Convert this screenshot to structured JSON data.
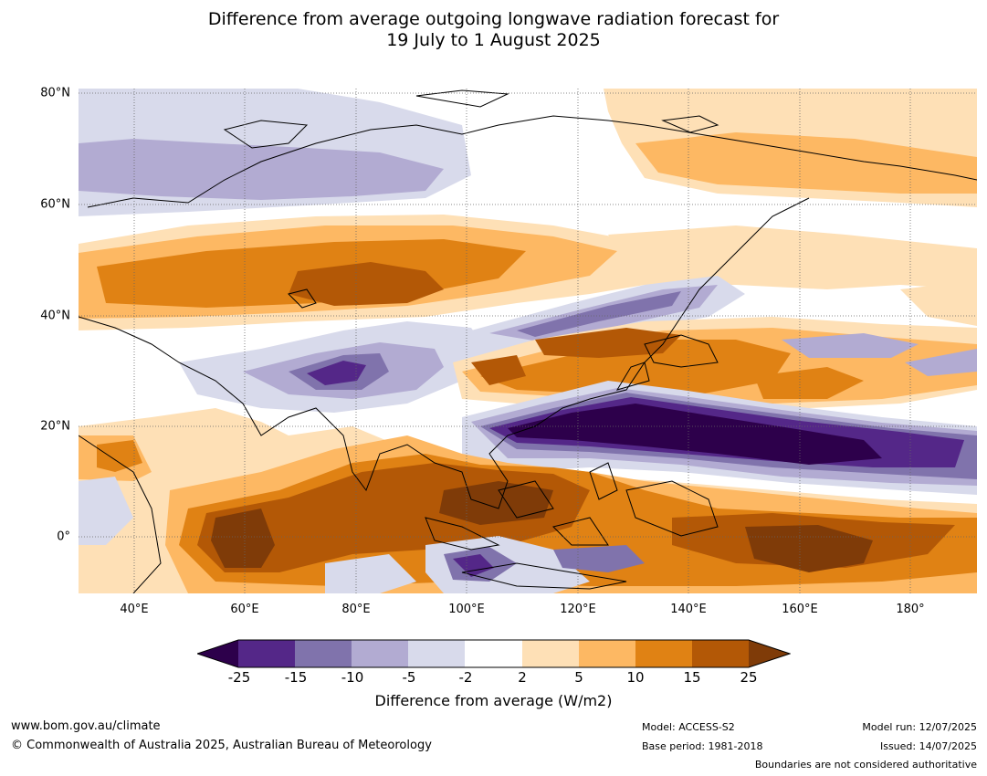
{
  "title": {
    "line1": "Difference from average outgoing longwave radiation forecast for",
    "line2": "19 July to 1 August 2025"
  },
  "map": {
    "lat_labels": [
      "80°N",
      "60°N",
      "40°N",
      "20°N",
      "0°"
    ],
    "lon_labels": [
      "40°E",
      "60°E",
      "80°E",
      "100°E",
      "120°E",
      "140°E",
      "160°E",
      "180°"
    ],
    "extent": {
      "lon_min": 30,
      "lon_max": 192,
      "lat_min": -10,
      "lat_max": 81
    }
  },
  "legend": {
    "ticks": [
      "-25",
      "-15",
      "-10",
      "-5",
      "-2",
      "2",
      "5",
      "10",
      "15",
      "25"
    ],
    "colors": [
      "#2d004b",
      "#542788",
      "#8073ac",
      "#b2abd2",
      "#d8daeb",
      "#ffffff",
      "#fee0b6",
      "#fdb863",
      "#e08214",
      "#b35806",
      "#7f3b08"
    ],
    "label": "Difference from average (W/m2)"
  },
  "footer": {
    "website": "www.bom.gov.au/climate",
    "copyright": "© Commonwealth of Australia 2025, Australian Bureau of Meteorology",
    "model": "Model: ACCESS-S2",
    "base_period": "Base period: 1981-2018",
    "model_run": "Model run: 12/07/2025",
    "issued": "Issued: 14/07/2025",
    "disclaimer": "Boundaries are not considered authoritative"
  }
}
